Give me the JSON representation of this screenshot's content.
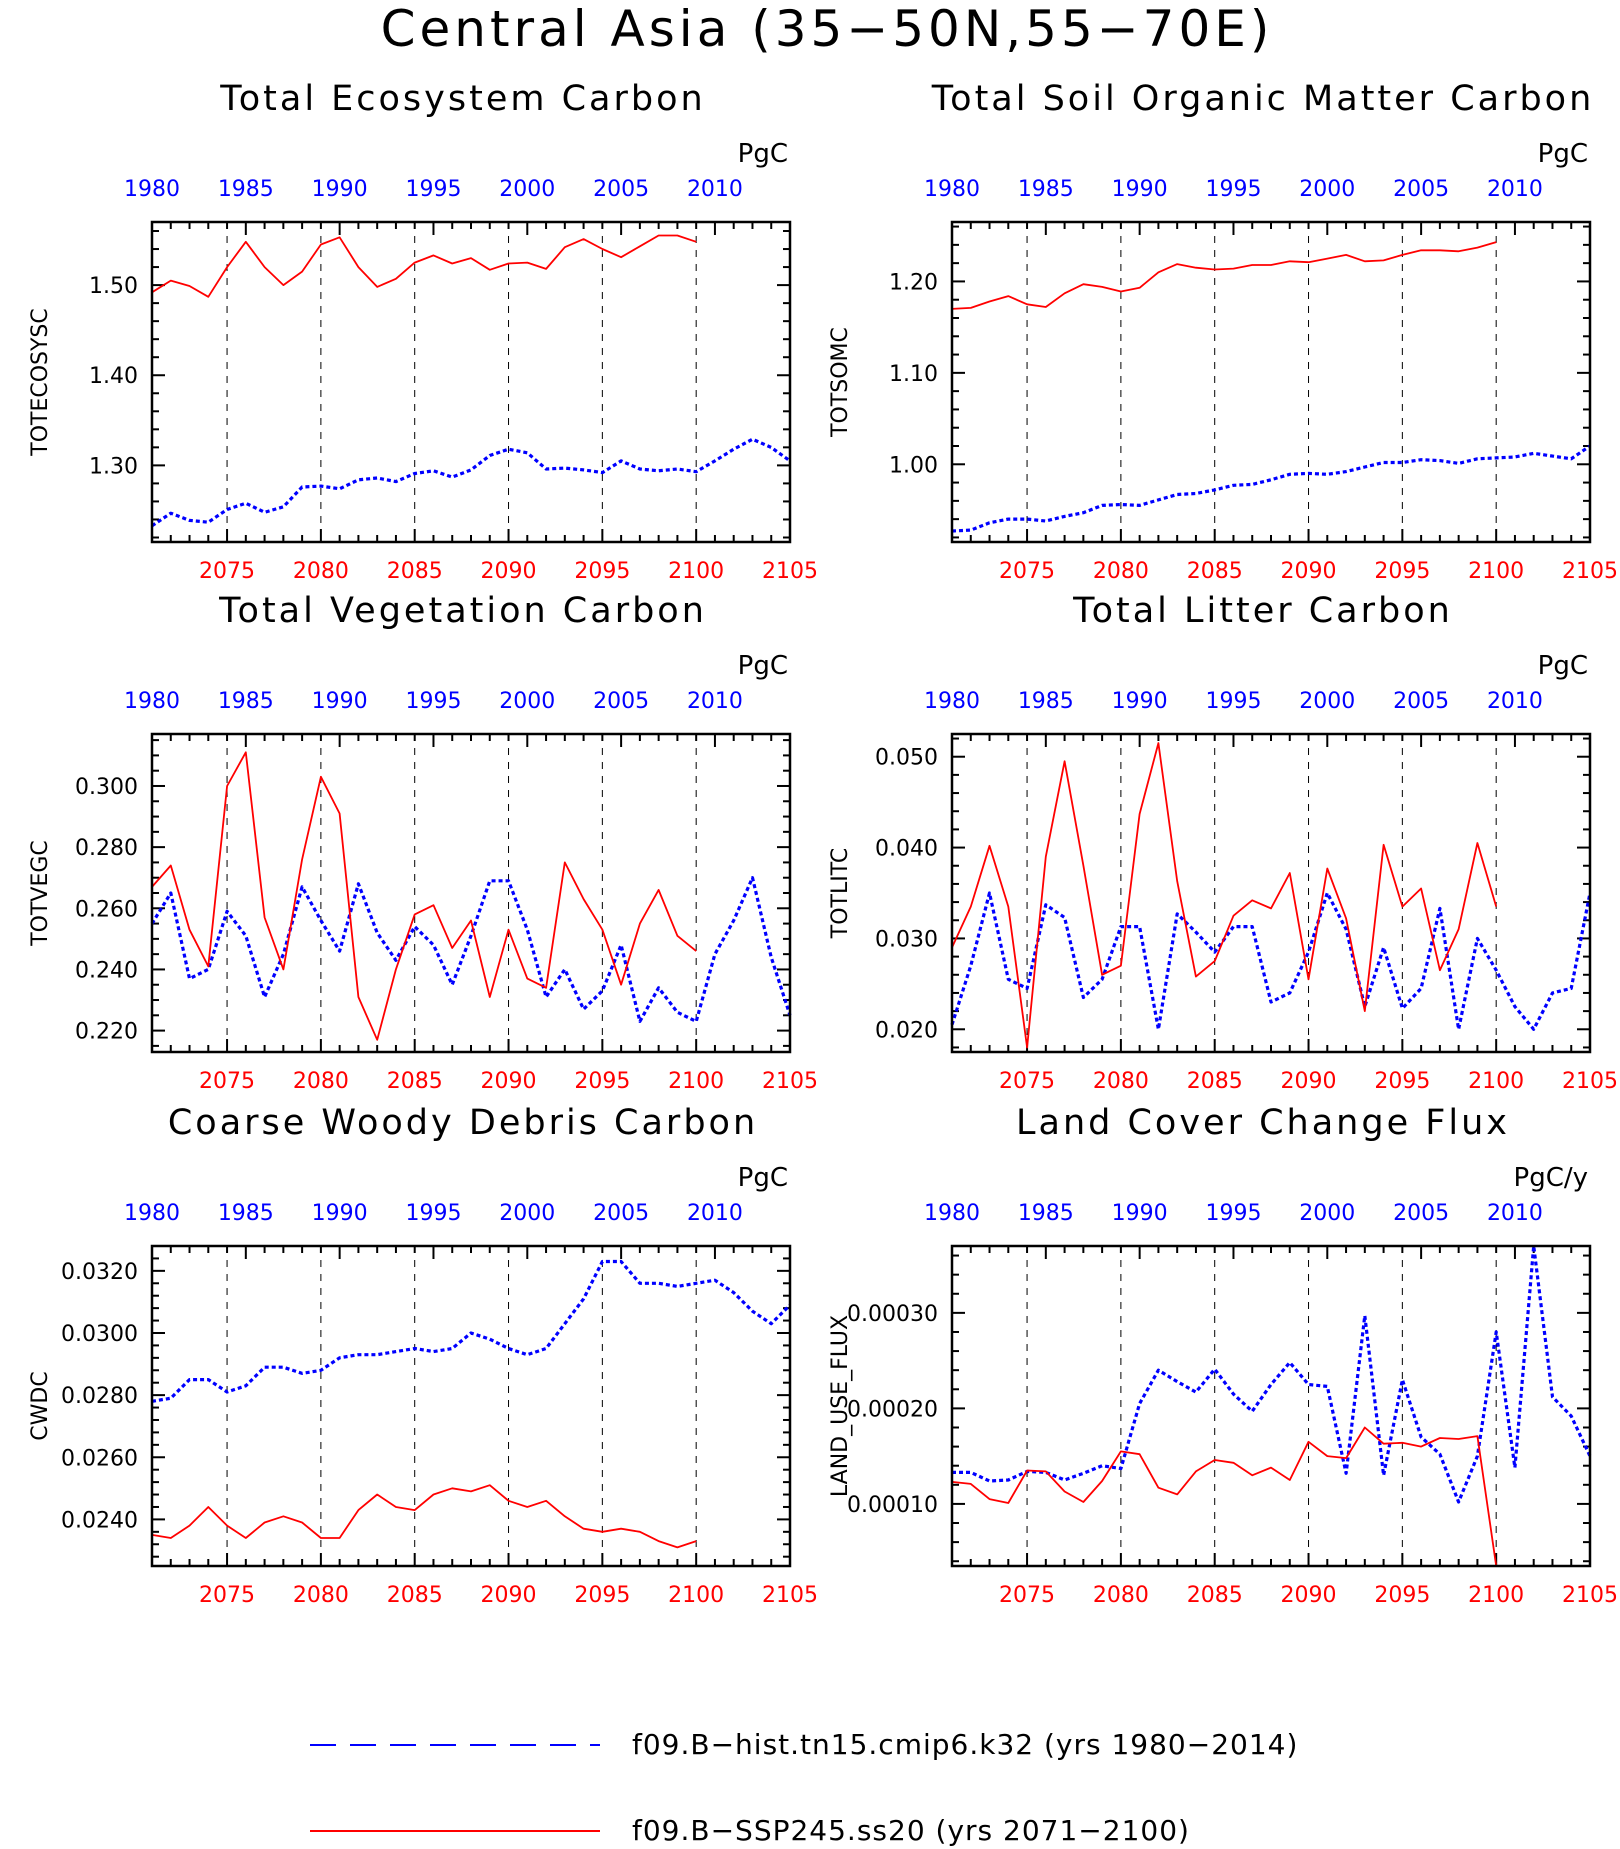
{
  "figure": {
    "title": "Central Asia (35−50N,55−70E)",
    "colors": {
      "hist": "#0000ff",
      "ssp": "#ff0000",
      "axis": "#000000"
    }
  },
  "legend": {
    "entries": [
      {
        "series": "hist",
        "label": "f09.B−hist.tn15.cmip6.k32 (yrs 1980−2014)",
        "style": "dashed",
        "color": "#0000ff"
      },
      {
        "series": "ssp",
        "label": "f09.B−SSP245.ss20 (yrs 2071−2100)",
        "style": "solid",
        "color": "#ff0000"
      }
    ]
  },
  "chart_data": [
    {
      "type": "line",
      "title": "Total Ecosystem Carbon",
      "ylabel": "TOTECOSYSC",
      "units": "PgC",
      "ylim": [
        1.215,
        1.57
      ],
      "yticks": [
        1.3,
        1.4,
        1.5
      ],
      "ytick_labels": [
        "1.30",
        "1.40",
        "1.50"
      ],
      "ytick_minor": 0.02,
      "bottom_axis": {
        "range": [
          2071,
          2105
        ],
        "ticks": [
          2075,
          2080,
          2085,
          2090,
          2095,
          2100,
          2105
        ]
      },
      "top_axis": {
        "range": [
          1980,
          2014
        ],
        "ticks": [
          1980,
          1985,
          1990,
          1995,
          2000,
          2005,
          2010
        ]
      },
      "vlines": [
        2075,
        2080,
        2085,
        2090,
        2095,
        2100
      ],
      "series": [
        {
          "key": "hist",
          "x_start": 1980,
          "values": [
            1.233,
            1.247,
            1.239,
            1.237,
            1.251,
            1.258,
            1.248,
            1.254,
            1.276,
            1.277,
            1.274,
            1.284,
            1.286,
            1.282,
            1.291,
            1.294,
            1.287,
            1.295,
            1.311,
            1.318,
            1.314,
            1.296,
            1.297,
            1.295,
            1.292,
            1.305,
            1.296,
            1.294,
            1.296,
            1.293,
            1.305,
            1.318,
            1.329,
            1.32,
            1.305
          ]
        },
        {
          "key": "ssp",
          "x_start": 2071,
          "values": [
            1.492,
            1.505,
            1.499,
            1.487,
            1.52,
            1.548,
            1.52,
            1.5,
            1.515,
            1.545,
            1.553,
            1.52,
            1.498,
            1.507,
            1.525,
            1.533,
            1.524,
            1.53,
            1.517,
            1.524,
            1.525,
            1.518,
            1.542,
            1.551,
            1.54,
            1.531,
            1.543,
            1.555,
            1.555,
            1.548
          ]
        }
      ]
    },
    {
      "type": "line",
      "title": "Total Soil Organic Matter Carbon",
      "ylabel": "TOTSOMC",
      "units": "PgC",
      "ylim": [
        0.915,
        1.265
      ],
      "yticks": [
        1.0,
        1.1,
        1.2
      ],
      "ytick_labels": [
        "1.00",
        "1.10",
        "1.20"
      ],
      "ytick_minor": 0.02,
      "bottom_axis": {
        "range": [
          2071,
          2105
        ],
        "ticks": [
          2075,
          2080,
          2085,
          2090,
          2095,
          2100,
          2105
        ]
      },
      "top_axis": {
        "range": [
          1980,
          2014
        ],
        "ticks": [
          1980,
          1985,
          1990,
          1995,
          2000,
          2005,
          2010
        ]
      },
      "vlines": [
        2075,
        2080,
        2085,
        2090,
        2095,
        2100
      ],
      "series": [
        {
          "key": "hist",
          "x_start": 1980,
          "values": [
            0.927,
            0.928,
            0.936,
            0.94,
            0.94,
            0.938,
            0.943,
            0.947,
            0.955,
            0.956,
            0.955,
            0.961,
            0.967,
            0.968,
            0.972,
            0.977,
            0.978,
            0.983,
            0.989,
            0.99,
            0.989,
            0.992,
            0.997,
            1.002,
            1.002,
            1.005,
            1.004,
            1.001,
            1.006,
            1.007,
            1.008,
            1.012,
            1.009,
            1.006,
            1.02
          ]
        },
        {
          "key": "ssp",
          "x_start": 2071,
          "values": [
            1.17,
            1.171,
            1.178,
            1.184,
            1.175,
            1.172,
            1.187,
            1.197,
            1.194,
            1.189,
            1.193,
            1.21,
            1.219,
            1.215,
            1.213,
            1.214,
            1.218,
            1.218,
            1.222,
            1.221,
            1.225,
            1.229,
            1.222,
            1.223,
            1.229,
            1.234,
            1.234,
            1.233,
            1.237,
            1.243
          ]
        }
      ]
    },
    {
      "type": "line",
      "title": "Total Vegetation Carbon",
      "ylabel": "TOTVEGC",
      "units": "PgC",
      "ylim": [
        0.213,
        0.317
      ],
      "yticks": [
        0.22,
        0.24,
        0.26,
        0.28,
        0.3
      ],
      "ytick_labels": [
        "0.220",
        "0.240",
        "0.260",
        "0.280",
        "0.300"
      ],
      "ytick_minor": 0.005,
      "bottom_axis": {
        "range": [
          2071,
          2105
        ],
        "ticks": [
          2075,
          2080,
          2085,
          2090,
          2095,
          2100,
          2105
        ]
      },
      "top_axis": {
        "range": [
          1980,
          2014
        ],
        "ticks": [
          1980,
          1985,
          1990,
          1995,
          2000,
          2005,
          2010
        ]
      },
      "vlines": [
        2075,
        2080,
        2085,
        2090,
        2095,
        2100
      ],
      "series": [
        {
          "key": "hist",
          "x_start": 1980,
          "values": [
            0.255,
            0.265,
            0.237,
            0.24,
            0.259,
            0.251,
            0.231,
            0.245,
            0.267,
            0.256,
            0.246,
            0.268,
            0.252,
            0.243,
            0.254,
            0.248,
            0.235,
            0.251,
            0.269,
            0.269,
            0.253,
            0.231,
            0.24,
            0.227,
            0.233,
            0.248,
            0.223,
            0.234,
            0.226,
            0.223,
            0.245,
            0.256,
            0.27,
            0.244,
            0.225
          ]
        },
        {
          "key": "ssp",
          "x_start": 2071,
          "values": [
            0.267,
            0.274,
            0.253,
            0.241,
            0.3,
            0.311,
            0.257,
            0.24,
            0.276,
            0.303,
            0.291,
            0.231,
            0.217,
            0.24,
            0.258,
            0.261,
            0.247,
            0.256,
            0.231,
            0.253,
            0.237,
            0.234,
            0.275,
            0.263,
            0.253,
            0.235,
            0.255,
            0.266,
            0.251,
            0.246
          ]
        }
      ]
    },
    {
      "type": "line",
      "title": "Total Litter Carbon",
      "ylabel": "TOTLITC",
      "units": "PgC",
      "ylim": [
        0.0175,
        0.0525
      ],
      "yticks": [
        0.02,
        0.03,
        0.04,
        0.05
      ],
      "ytick_labels": [
        "0.020",
        "0.030",
        "0.040",
        "0.050"
      ],
      "ytick_minor": 0.002,
      "bottom_axis": {
        "range": [
          2071,
          2105
        ],
        "ticks": [
          2075,
          2080,
          2085,
          2090,
          2095,
          2100,
          2105
        ]
      },
      "top_axis": {
        "range": [
          1980,
          2014
        ],
        "ticks": [
          1980,
          1985,
          1990,
          1995,
          2000,
          2005,
          2010
        ]
      },
      "vlines": [
        2075,
        2080,
        2085,
        2090,
        2095,
        2100
      ],
      "series": [
        {
          "key": "hist",
          "x_start": 1980,
          "values": [
            0.0205,
            0.027,
            0.035,
            0.0255,
            0.0245,
            0.0337,
            0.0323,
            0.0235,
            0.0255,
            0.0313,
            0.0313,
            0.02,
            0.0327,
            0.0307,
            0.0285,
            0.0313,
            0.0313,
            0.023,
            0.024,
            0.0285,
            0.035,
            0.031,
            0.0225,
            0.029,
            0.0223,
            0.0245,
            0.0333,
            0.02,
            0.03,
            0.0265,
            0.0225,
            0.02,
            0.024,
            0.0245,
            0.035
          ]
        },
        {
          "key": "ssp",
          "x_start": 2071,
          "values": [
            0.029,
            0.0335,
            0.0402,
            0.0335,
            0.018,
            0.039,
            0.0495,
            0.038,
            0.026,
            0.027,
            0.0437,
            0.0515,
            0.0363,
            0.0258,
            0.0275,
            0.0325,
            0.0342,
            0.0333,
            0.0372,
            0.0255,
            0.0377,
            0.0322,
            0.022,
            0.0403,
            0.0335,
            0.0355,
            0.0265,
            0.031,
            0.0405,
            0.0335
          ]
        }
      ]
    },
    {
      "type": "line",
      "title": "Coarse Woody Debris Carbon",
      "ylabel": "CWDC",
      "units": "PgC",
      "ylim": [
        0.0225,
        0.0328
      ],
      "yticks": [
        0.024,
        0.026,
        0.028,
        0.03,
        0.032
      ],
      "ytick_labels": [
        "0.0240",
        "0.0260",
        "0.0280",
        "0.0300",
        "0.0320"
      ],
      "ytick_minor": 0.0004,
      "bottom_axis": {
        "range": [
          2071,
          2105
        ],
        "ticks": [
          2075,
          2080,
          2085,
          2090,
          2095,
          2100,
          2105
        ]
      },
      "top_axis": {
        "range": [
          1980,
          2014
        ],
        "ticks": [
          1980,
          1985,
          1990,
          1995,
          2000,
          2005,
          2010
        ]
      },
      "vlines": [
        2075,
        2080,
        2085,
        2090,
        2095,
        2100
      ],
      "series": [
        {
          "key": "hist",
          "x_start": 1980,
          "values": [
            0.0278,
            0.0279,
            0.0285,
            0.0285,
            0.0281,
            0.0283,
            0.0289,
            0.0289,
            0.0287,
            0.0288,
            0.0292,
            0.0293,
            0.0293,
            0.0294,
            0.0295,
            0.0294,
            0.0295,
            0.03,
            0.0298,
            0.0295,
            0.0293,
            0.0295,
            0.0303,
            0.0311,
            0.0323,
            0.0323,
            0.0316,
            0.0316,
            0.0315,
            0.0316,
            0.0317,
            0.0313,
            0.0307,
            0.0303,
            0.0309
          ]
        },
        {
          "key": "ssp",
          "x_start": 2071,
          "values": [
            0.0235,
            0.0234,
            0.0238,
            0.0244,
            0.0238,
            0.0234,
            0.0239,
            0.0241,
            0.0239,
            0.0234,
            0.0234,
            0.0243,
            0.0248,
            0.0244,
            0.0243,
            0.0248,
            0.025,
            0.0249,
            0.0251,
            0.0246,
            0.0244,
            0.0246,
            0.0241,
            0.0237,
            0.0236,
            0.0237,
            0.0236,
            0.0233,
            0.0231,
            0.0233
          ]
        }
      ]
    },
    {
      "type": "line",
      "title": "Land Cover Change Flux",
      "ylabel": "LAND_USE_FLUX",
      "units": "PgC/y",
      "ylim": [
        3.5e-05,
        0.00037
      ],
      "yticks": [
        0.0001,
        0.0002,
        0.0003
      ],
      "ytick_labels": [
        "0.00010",
        "0.00020",
        "0.00030"
      ],
      "ytick_minor": 2e-05,
      "bottom_axis": {
        "range": [
          2071,
          2105
        ],
        "ticks": [
          2075,
          2080,
          2085,
          2090,
          2095,
          2100,
          2105
        ]
      },
      "top_axis": {
        "range": [
          1980,
          2014
        ],
        "ticks": [
          1980,
          1985,
          1990,
          1995,
          2000,
          2005,
          2010
        ]
      },
      "vlines": [
        2075,
        2080,
        2085,
        2090,
        2095,
        2100
      ],
      "series": [
        {
          "key": "hist",
          "x_start": 1980,
          "values": [
            0.000133,
            0.000133,
            0.000124,
            0.000125,
            0.000134,
            0.000133,
            0.000125,
            0.000132,
            0.00014,
            0.000137,
            0.000205,
            0.00024,
            0.000228,
            0.000217,
            0.000241,
            0.000215,
            0.000197,
            0.000225,
            0.000248,
            0.000225,
            0.000223,
            0.000132,
            0.000297,
            0.00013,
            0.00023,
            0.00017,
            0.000152,
            0.000102,
            0.00015,
            0.00028,
            0.000138,
            0.00037,
            0.000212,
            0.000192,
            0.00015
          ]
        },
        {
          "key": "ssp",
          "x_start": 2071,
          "values": [
            0.000123,
            0.000121,
            0.000105,
            0.000101,
            0.000135,
            0.000134,
            0.000113,
            0.000102,
            0.000124,
            0.000155,
            0.000152,
            0.000117,
            0.00011,
            0.000134,
            0.000146,
            0.000143,
            0.00013,
            0.000138,
            0.000125,
            0.000165,
            0.00015,
            0.000148,
            0.00018,
            0.000163,
            0.000164,
            0.00016,
            0.000169,
            0.000168,
            0.000171,
            3.5e-05
          ]
        }
      ]
    }
  ]
}
